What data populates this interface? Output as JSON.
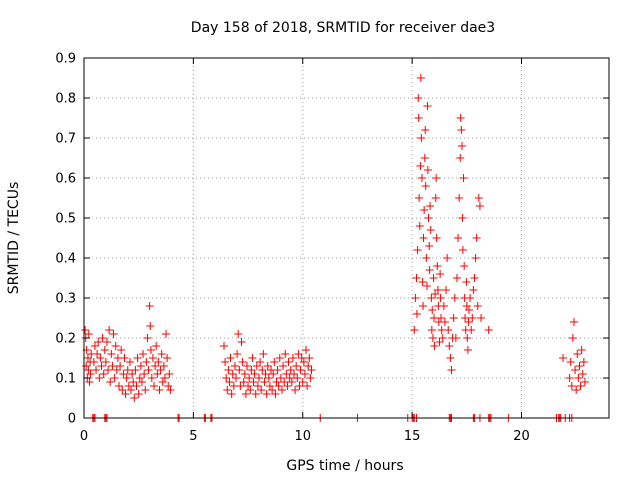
{
  "chart_data": {
    "type": "scatter",
    "title": "Day 158 of 2018, SRMTID for receiver dae3",
    "xlabel": "GPS time / hours",
    "ylabel": "SRMTID / TECUs",
    "xlim": [
      0,
      24
    ],
    "ylim": [
      0,
      0.9
    ],
    "xticks": [
      0,
      5,
      10,
      15,
      20
    ],
    "yticks": [
      0,
      0.1,
      0.2,
      0.3,
      0.4,
      0.5,
      0.6,
      0.7,
      0.8,
      0.9
    ],
    "xtick_labels": [
      "0",
      "5",
      "10",
      "15",
      "20"
    ],
    "ytick_labels": [
      "0",
      "0.1",
      "0.2",
      "0.3",
      "0.4",
      "0.5",
      "0.6",
      "0.7",
      "0.8",
      "0.9"
    ],
    "grid": true,
    "marker": "+",
    "series": [
      {
        "name": "SRMTID",
        "color": "#ff0000",
        "points": [
          [
            0.05,
            0.22
          ],
          [
            0.08,
            0.2
          ],
          [
            0.1,
            0.13
          ],
          [
            0.12,
            0.17
          ],
          [
            0.15,
            0.1
          ],
          [
            0.18,
            0.15
          ],
          [
            0.2,
            0.12
          ],
          [
            0.22,
            0.21
          ],
          [
            0.25,
            0.09
          ],
          [
            0.28,
            0.14
          ],
          [
            0.3,
            0.11
          ],
          [
            0.33,
            0.16
          ],
          [
            0.45,
            0.14
          ],
          [
            0.5,
            0.18
          ],
          [
            0.55,
            0.12
          ],
          [
            0.6,
            0.16
          ],
          [
            0.65,
            0.19
          ],
          [
            0.7,
            0.1
          ],
          [
            0.75,
            0.15
          ],
          [
            0.8,
            0.13
          ],
          [
            0.85,
            0.2
          ],
          [
            0.9,
            0.11
          ],
          [
            0.95,
            0.17
          ],
          [
            1.0,
            0.14
          ],
          [
            1.05,
            0.19
          ],
          [
            1.1,
            0.12
          ],
          [
            1.15,
            0.22
          ],
          [
            1.2,
            0.09
          ],
          [
            1.25,
            0.16
          ],
          [
            1.3,
            0.13
          ],
          [
            1.35,
            0.21
          ],
          [
            1.4,
            0.1
          ],
          [
            1.45,
            0.18
          ],
          [
            1.5,
            0.12
          ],
          [
            1.55,
            0.15
          ],
          [
            1.6,
            0.08
          ],
          [
            1.65,
            0.13
          ],
          [
            1.7,
            0.17
          ],
          [
            1.75,
            0.07
          ],
          [
            1.8,
            0.11
          ],
          [
            1.85,
            0.15
          ],
          [
            1.9,
            0.06
          ],
          [
            1.95,
            0.1
          ],
          [
            2.0,
            0.12
          ],
          [
            2.05,
            0.08
          ],
          [
            2.1,
            0.14
          ],
          [
            2.15,
            0.07
          ],
          [
            2.2,
            0.11
          ],
          [
            2.25,
            0.09
          ],
          [
            2.3,
            0.05
          ],
          [
            2.35,
            0.12
          ],
          [
            2.4,
            0.08
          ],
          [
            2.45,
            0.15
          ],
          [
            2.5,
            0.06
          ],
          [
            2.55,
            0.1
          ],
          [
            2.6,
            0.13
          ],
          [
            2.65,
            0.09
          ],
          [
            2.7,
            0.16
          ],
          [
            2.75,
            0.11
          ],
          [
            2.8,
            0.07
          ],
          [
            2.85,
            0.14
          ],
          [
            2.9,
            0.2
          ],
          [
            2.95,
            0.12
          ],
          [
            3.0,
            0.28
          ],
          [
            3.03,
            0.23
          ],
          [
            3.06,
            0.17
          ],
          [
            3.1,
            0.1
          ],
          [
            3.15,
            0.15
          ],
          [
            3.2,
            0.08
          ],
          [
            3.25,
            0.13
          ],
          [
            3.3,
            0.18
          ],
          [
            3.35,
            0.11
          ],
          [
            3.4,
            0.14
          ],
          [
            3.45,
            0.07
          ],
          [
            3.5,
            0.12
          ],
          [
            3.55,
            0.16
          ],
          [
            3.6,
            0.09
          ],
          [
            3.65,
            0.13
          ],
          [
            3.7,
            0.1
          ],
          [
            3.75,
            0.21
          ],
          [
            3.8,
            0.15
          ],
          [
            3.85,
            0.08
          ],
          [
            3.9,
            0.11
          ],
          [
            3.95,
            0.07
          ],
          [
            6.4,
            0.18
          ],
          [
            6.45,
            0.14
          ],
          [
            6.5,
            0.1
          ],
          [
            6.55,
            0.07
          ],
          [
            6.6,
            0.12
          ],
          [
            6.65,
            0.09
          ],
          [
            6.7,
            0.15
          ],
          [
            6.75,
            0.06
          ],
          [
            6.8,
            0.11
          ],
          [
            6.85,
            0.08
          ],
          [
            6.9,
            0.13
          ],
          [
            6.95,
            0.1
          ],
          [
            7.0,
            0.16
          ],
          [
            7.05,
            0.21
          ],
          [
            7.1,
            0.12
          ],
          [
            7.15,
            0.08
          ],
          [
            7.2,
            0.19
          ],
          [
            7.25,
            0.14
          ],
          [
            7.3,
            0.09
          ],
          [
            7.35,
            0.11
          ],
          [
            7.4,
            0.06
          ],
          [
            7.45,
            0.13
          ],
          [
            7.5,
            0.08
          ],
          [
            7.55,
            0.1
          ],
          [
            7.6,
            0.07
          ],
          [
            7.65,
            0.12
          ],
          [
            7.7,
            0.15
          ],
          [
            7.75,
            0.09
          ],
          [
            7.8,
            0.11
          ],
          [
            7.85,
            0.06
          ],
          [
            7.9,
            0.13
          ],
          [
            7.95,
            0.08
          ],
          [
            8.0,
            0.1
          ],
          [
            8.05,
            0.14
          ],
          [
            8.1,
            0.07
          ],
          [
            8.15,
            0.12
          ],
          [
            8.2,
            0.16
          ],
          [
            8.25,
            0.09
          ],
          [
            8.3,
            0.11
          ],
          [
            8.35,
            0.06
          ],
          [
            8.4,
            0.13
          ],
          [
            8.45,
            0.1
          ],
          [
            8.5,
            0.08
          ],
          [
            8.55,
            0.12
          ],
          [
            8.6,
            0.07
          ],
          [
            8.65,
            0.11
          ],
          [
            8.7,
            0.14
          ],
          [
            8.75,
            0.06
          ],
          [
            8.8,
            0.09
          ],
          [
            8.85,
            0.12
          ],
          [
            8.9,
            0.08
          ],
          [
            8.95,
            0.15
          ],
          [
            9.0,
            0.1
          ],
          [
            9.05,
            0.07
          ],
          [
            9.1,
            0.13
          ],
          [
            9.15,
            0.09
          ],
          [
            9.2,
            0.16
          ],
          [
            9.25,
            0.11
          ],
          [
            9.3,
            0.08
          ],
          [
            9.35,
            0.14
          ],
          [
            9.4,
            0.1
          ],
          [
            9.45,
            0.12
          ],
          [
            9.5,
            0.09
          ],
          [
            9.55,
            0.15
          ],
          [
            9.6,
            0.11
          ],
          [
            9.65,
            0.07
          ],
          [
            9.7,
            0.13
          ],
          [
            9.75,
            0.1
          ],
          [
            9.8,
            0.16
          ],
          [
            9.85,
            0.08
          ],
          [
            9.9,
            0.12
          ],
          [
            9.95,
            0.15
          ],
          [
            10.0,
            0.09
          ],
          [
            10.05,
            0.14
          ],
          [
            10.1,
            0.11
          ],
          [
            10.15,
            0.17
          ],
          [
            10.2,
            0.08
          ],
          [
            10.25,
            0.13
          ],
          [
            10.3,
            0.15
          ],
          [
            10.35,
            0.1
          ],
          [
            10.4,
            0.12
          ],
          [
            15.1,
            0.22
          ],
          [
            15.15,
            0.3
          ],
          [
            15.2,
            0.35
          ],
          [
            15.22,
            0.26
          ],
          [
            15.25,
            0.42
          ],
          [
            15.28,
            0.8
          ],
          [
            15.3,
            0.75
          ],
          [
            15.32,
            0.55
          ],
          [
            15.35,
            0.48
          ],
          [
            15.38,
            0.63
          ],
          [
            15.4,
            0.85
          ],
          [
            15.42,
            0.7
          ],
          [
            15.45,
            0.6
          ],
          [
            15.48,
            0.34
          ],
          [
            15.5,
            0.28
          ],
          [
            15.52,
            0.45
          ],
          [
            15.55,
            0.52
          ],
          [
            15.58,
            0.65
          ],
          [
            15.6,
            0.72
          ],
          [
            15.62,
            0.58
          ],
          [
            15.65,
            0.4
          ],
          [
            15.68,
            0.33
          ],
          [
            15.7,
            0.78
          ],
          [
            15.72,
            0.62
          ],
          [
            15.75,
            0.5
          ],
          [
            15.78,
            0.43
          ],
          [
            15.8,
            0.37
          ],
          [
            15.82,
            0.53
          ],
          [
            15.85,
            0.47
          ],
          [
            15.88,
            0.3
          ],
          [
            15.9,
            0.22
          ],
          [
            15.92,
            0.27
          ],
          [
            15.95,
            0.2
          ],
          [
            15.98,
            0.35
          ],
          [
            16.0,
            0.25
          ],
          [
            16.02,
            0.18
          ],
          [
            16.05,
            0.31
          ],
          [
            16.08,
            0.55
          ],
          [
            16.1,
            0.6
          ],
          [
            16.12,
            0.45
          ],
          [
            16.15,
            0.38
          ],
          [
            16.18,
            0.32
          ],
          [
            16.2,
            0.28
          ],
          [
            16.22,
            0.24
          ],
          [
            16.25,
            0.19
          ],
          [
            16.28,
            0.36
          ],
          [
            16.3,
            0.3
          ],
          [
            16.32,
            0.25
          ],
          [
            16.35,
            0.22
          ],
          [
            16.4,
            0.2
          ],
          [
            16.45,
            0.28
          ],
          [
            16.5,
            0.24
          ],
          [
            16.55,
            0.32
          ],
          [
            16.6,
            0.4
          ],
          [
            16.65,
            0.22
          ],
          [
            16.7,
            0.18
          ],
          [
            16.75,
            0.15
          ],
          [
            16.8,
            0.12
          ],
          [
            16.85,
            0.2
          ],
          [
            16.9,
            0.25
          ],
          [
            16.95,
            0.3
          ],
          [
            17.0,
            0.2
          ],
          [
            17.05,
            0.35
          ],
          [
            17.1,
            0.45
          ],
          [
            17.15,
            0.55
          ],
          [
            17.2,
            0.65
          ],
          [
            17.22,
            0.75
          ],
          [
            17.25,
            0.72
          ],
          [
            17.28,
            0.68
          ],
          [
            17.3,
            0.5
          ],
          [
            17.32,
            0.42
          ],
          [
            17.35,
            0.6
          ],
          [
            17.38,
            0.38
          ],
          [
            17.4,
            0.3
          ],
          [
            17.42,
            0.25
          ],
          [
            17.45,
            0.22
          ],
          [
            17.48,
            0.34
          ],
          [
            17.5,
            0.28
          ],
          [
            17.52,
            0.2
          ],
          [
            17.55,
            0.17
          ],
          [
            17.58,
            0.24
          ],
          [
            17.6,
            0.27
          ],
          [
            17.65,
            0.3
          ],
          [
            17.7,
            0.22
          ],
          [
            17.75,
            0.25
          ],
          [
            17.8,
            0.32
          ],
          [
            17.85,
            0.35
          ],
          [
            17.9,
            0.4
          ],
          [
            17.95,
            0.45
          ],
          [
            18.0,
            0.28
          ],
          [
            18.05,
            0.55
          ],
          [
            18.1,
            0.53
          ],
          [
            18.15,
            0.25
          ],
          [
            18.5,
            0.22
          ],
          [
            21.9,
            0.15
          ],
          [
            22.2,
            0.1
          ],
          [
            22.25,
            0.14
          ],
          [
            22.3,
            0.08
          ],
          [
            22.35,
            0.2
          ],
          [
            22.4,
            0.24
          ],
          [
            22.45,
            0.12
          ],
          [
            22.5,
            0.07
          ],
          [
            22.55,
            0.16
          ],
          [
            22.6,
            0.1
          ],
          [
            22.65,
            0.13
          ],
          [
            22.7,
            0.08
          ],
          [
            22.75,
            0.17
          ],
          [
            22.8,
            0.11
          ],
          [
            22.85,
            0.14
          ],
          [
            22.9,
            0.09
          ]
        ]
      }
    ],
    "zero_points_x": [
      0.4,
      0.45,
      0.5,
      0.95,
      1.0,
      1.05,
      4.3,
      4.35,
      5.5,
      5.55,
      5.8,
      5.85,
      10.8,
      12.5,
      14.8,
      15.0,
      15.05,
      15.1,
      15.2,
      16.7,
      16.75,
      16.8,
      17.8,
      17.85,
      18.1,
      18.5,
      18.55,
      18.6,
      19.4,
      21.6,
      21.7,
      21.75,
      21.8,
      22.0,
      22.2,
      22.3
    ]
  }
}
